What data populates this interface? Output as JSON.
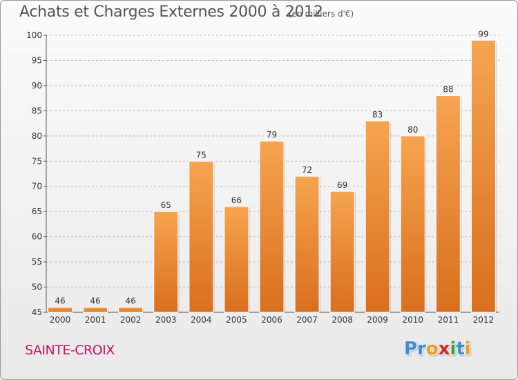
{
  "header": {
    "title": "Achats et Charges Externes 2000 à 2012",
    "subtitle": "(en milliers d'€)"
  },
  "footer": {
    "commune": "SAINTE-CROIX",
    "logo_letters": [
      {
        "char": "P",
        "color": "#3b8fd6"
      },
      {
        "char": "r",
        "color": "#3b8fd6"
      },
      {
        "char": "o",
        "color": "#e8a21a"
      },
      {
        "char": "x",
        "color": "#d8262f"
      },
      {
        "char": "i",
        "color": "#2e9f3f"
      },
      {
        "char": "t",
        "color": "#3b8fd6"
      },
      {
        "char": "i",
        "color": "#e8a21a"
      }
    ]
  },
  "colors": {
    "bar_light": "#f6a450",
    "bar_dark": "#d96f1e",
    "grid": "#bbbbbb",
    "axis": "#555555"
  },
  "chart_data": {
    "type": "bar",
    "categories": [
      "2000",
      "2001",
      "2002",
      "2003",
      "2004",
      "2005",
      "2006",
      "2007",
      "2008",
      "2009",
      "2010",
      "2011",
      "2012"
    ],
    "values": [
      46,
      46,
      46,
      65,
      75,
      66,
      79,
      72,
      69,
      83,
      80,
      88,
      99
    ],
    "ylim": [
      45,
      100
    ],
    "yticks": [
      45,
      50,
      55,
      60,
      65,
      70,
      75,
      80,
      85,
      90,
      95,
      100
    ],
    "grid": true,
    "title": "Achats et Charges Externes 2000 à 2012",
    "xlabel": "",
    "ylabel": ""
  }
}
